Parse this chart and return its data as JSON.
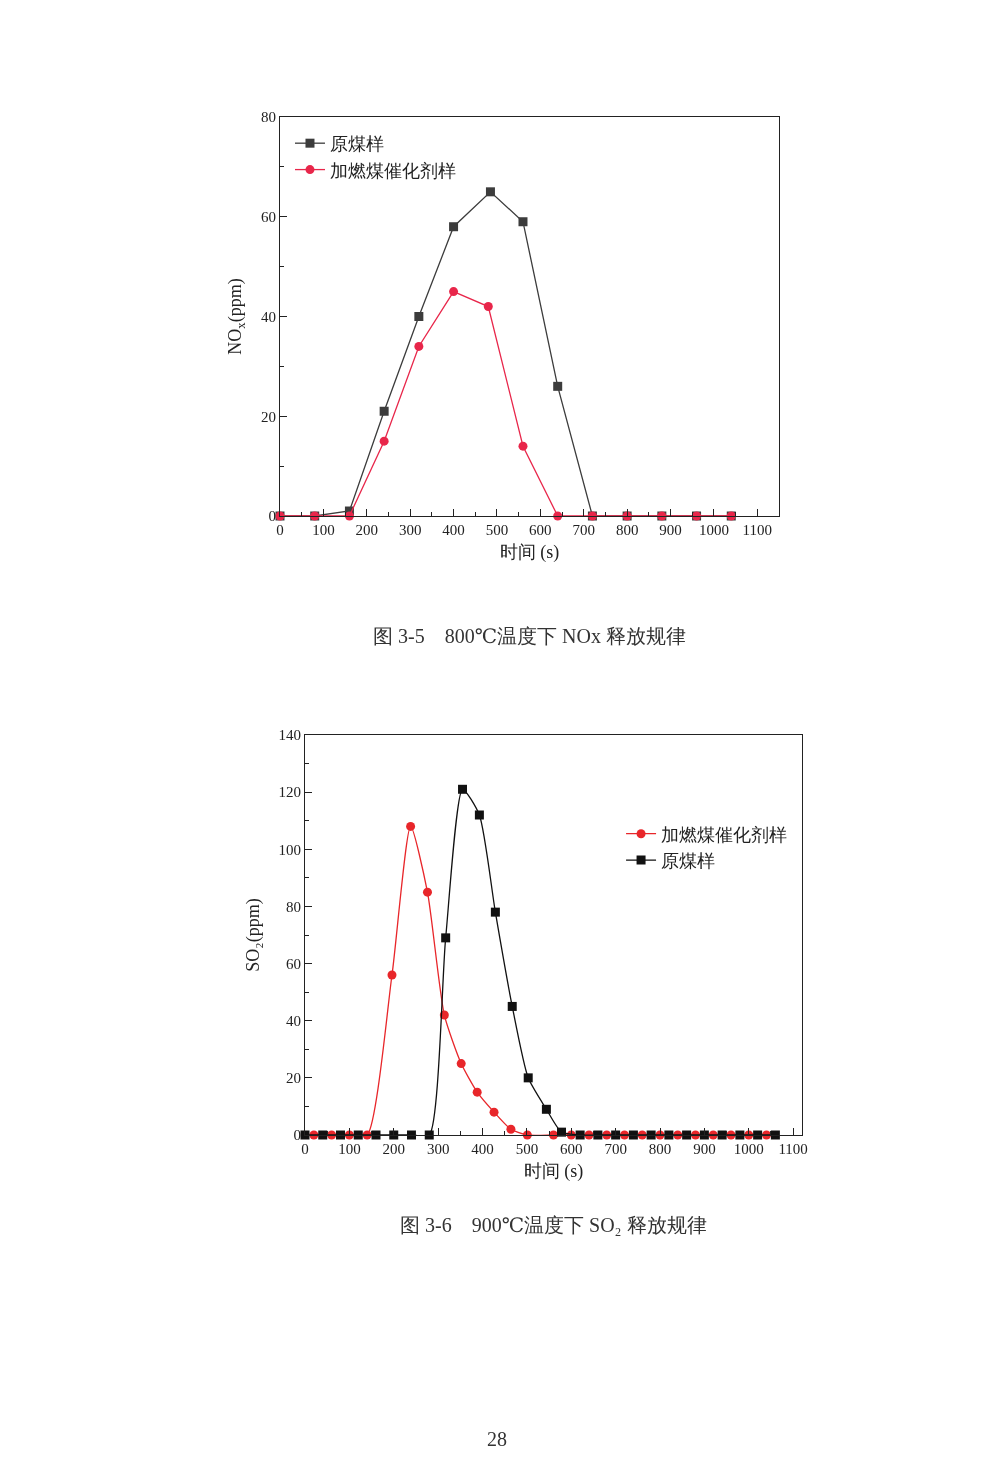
{
  "chart_data": [
    {
      "type": "line",
      "xlabel": "时间 (s)",
      "ylabel": "NO$_{x}$(ppm)",
      "xlim": [
        0,
        1150
      ],
      "xticks": [
        0,
        100,
        200,
        300,
        400,
        500,
        600,
        700,
        800,
        900,
        1000,
        1100
      ],
      "ylim": [
        0,
        80
      ],
      "yticks": [
        0,
        20,
        40,
        60,
        80
      ],
      "grid": false,
      "legend": "top left",
      "line_style": "solid",
      "series": [
        {
          "name": "原煤样",
          "color": "#3c3c3c",
          "marker": "square",
          "x": [
            0,
            80,
            160,
            240,
            320,
            400,
            485,
            560,
            640,
            720,
            800,
            880,
            960,
            1040
          ],
          "values": [
            0,
            0,
            1,
            21,
            40,
            58,
            65,
            59,
            26,
            0,
            0,
            0,
            0,
            0
          ]
        },
        {
          "name": "加燃煤催化剂样",
          "color": "#e8264a",
          "marker": "circle",
          "x": [
            0,
            80,
            160,
            240,
            320,
            400,
            480,
            560,
            640,
            720,
            800,
            880,
            960,
            1040
          ],
          "values": [
            0,
            0,
            0,
            15,
            34,
            45,
            42,
            14,
            0,
            0,
            0,
            0,
            0,
            0
          ]
        }
      ],
      "annotations": [
        "图 3-5　800℃温度下 NOx 释放规律"
      ]
    },
    {
      "type": "line",
      "xlabel": "时间 (s)",
      "ylabel": "SO₂(ppm)",
      "xlim": [
        0,
        1120
      ],
      "xticks": [
        0,
        100,
        200,
        300,
        400,
        500,
        600,
        700,
        800,
        900,
        1000,
        1100
      ],
      "ylim": [
        0,
        140
      ],
      "yticks": [
        0,
        20,
        40,
        60,
        80,
        100,
        120,
        140
      ],
      "grid": false,
      "legend": "right",
      "line_style": "solid",
      "series": [
        {
          "name": "加燃煤催化剂样",
          "color": "#e8262a",
          "marker": "circle",
          "x": [
            20,
            60,
            100,
            140,
            196,
            238,
            276,
            314,
            352,
            388,
            426,
            464,
            501,
            560,
            600,
            640,
            680,
            720,
            760,
            800,
            840,
            880,
            920,
            960,
            1000,
            1040
          ],
          "values": [
            0,
            0,
            0,
            0,
            56,
            108,
            85,
            42,
            25,
            15,
            8,
            2,
            0,
            0,
            0,
            0,
            0,
            0,
            0,
            0,
            0,
            0,
            0,
            0,
            0,
            0
          ]
        },
        {
          "name": "原煤样",
          "color": "#111111",
          "marker": "square",
          "x": [
            0,
            40,
            80,
            120,
            160,
            200,
            240,
            280,
            317,
            355,
            393,
            429,
            467,
            503,
            544,
            578,
            620,
            660,
            700,
            740,
            780,
            820,
            860,
            900,
            940,
            980,
            1020,
            1060
          ],
          "values": [
            0,
            0,
            0,
            0,
            0,
            0,
            0,
            0,
            69,
            121,
            112,
            78,
            45,
            20,
            9,
            1,
            0,
            0,
            0,
            0,
            0,
            0,
            0,
            0,
            0,
            0,
            0,
            0
          ]
        }
      ],
      "annotations": [
        "图 3-6　900℃温度下 SO₂ 释放规律",
        "28"
      ]
    }
  ]
}
